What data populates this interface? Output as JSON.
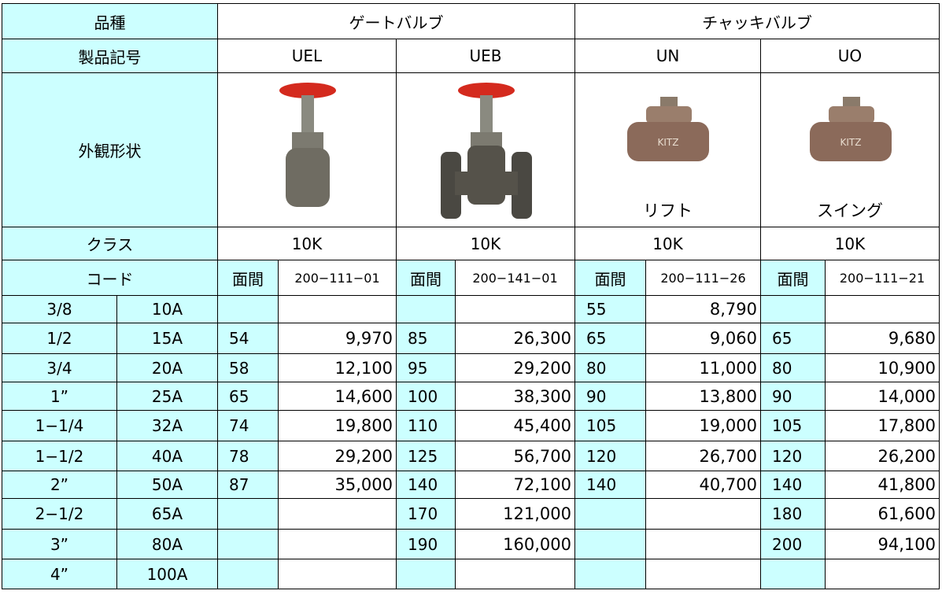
{
  "labels": {
    "kind": "品種",
    "product_code": "製品記号",
    "appearance": "外観形状",
    "class": "クラス",
    "code": "コード"
  },
  "groups": [
    {
      "name": "ゲートバルブ"
    },
    {
      "name": "チャッキバルブ"
    }
  ],
  "products": [
    {
      "symbol": "UEL",
      "class": "10K",
      "face_label": "面間",
      "code": "200−111−01"
    },
    {
      "symbol": "UEB",
      "class": "10K",
      "face_label": "面間",
      "code": "200−141−01"
    },
    {
      "symbol": "UN",
      "caption": "リフト",
      "class": "10K",
      "face_label": "面間",
      "code": "200−111−26"
    },
    {
      "symbol": "UO",
      "caption": "スイング",
      "class": "10K",
      "face_label": "面間",
      "code": "200−111−21"
    }
  ],
  "rows": [
    {
      "inch": "3/8",
      "mm": "10A",
      "cells": [
        null,
        null,
        {
          "face": 55,
          "price": "8,790"
        },
        null
      ]
    },
    {
      "inch": "1/2",
      "mm": "15A",
      "cells": [
        {
          "face": 54,
          "price": "9,970"
        },
        {
          "face": 85,
          "price": "26,300"
        },
        {
          "face": 65,
          "price": "9,060"
        },
        {
          "face": 65,
          "price": "9,680"
        }
      ]
    },
    {
      "inch": "3/4",
      "mm": "20A",
      "cells": [
        {
          "face": 58,
          "price": "12,100"
        },
        {
          "face": 95,
          "price": "29,200"
        },
        {
          "face": 80,
          "price": "11,000"
        },
        {
          "face": 80,
          "price": "10,900"
        }
      ]
    },
    {
      "inch": "1”",
      "mm": "25A",
      "cells": [
        {
          "face": 65,
          "price": "14,600"
        },
        {
          "face": 100,
          "price": "38,300"
        },
        {
          "face": 90,
          "price": "13,800"
        },
        {
          "face": 90,
          "price": "14,000"
        }
      ]
    },
    {
      "inch": "1−1/4",
      "mm": "32A",
      "cells": [
        {
          "face": 74,
          "price": "19,800"
        },
        {
          "face": 110,
          "price": "45,400"
        },
        {
          "face": 105,
          "price": "19,000"
        },
        {
          "face": 105,
          "price": "17,800"
        }
      ]
    },
    {
      "inch": "1−1/2",
      "mm": "40A",
      "cells": [
        {
          "face": 78,
          "price": "29,200"
        },
        {
          "face": 125,
          "price": "56,700"
        },
        {
          "face": 120,
          "price": "26,700"
        },
        {
          "face": 120,
          "price": "26,200"
        }
      ]
    },
    {
      "inch": "2”",
      "mm": "50A",
      "cells": [
        {
          "face": 87,
          "price": "35,000"
        },
        {
          "face": 140,
          "price": "72,100"
        },
        {
          "face": 140,
          "price": "40,700"
        },
        {
          "face": 140,
          "price": "41,800"
        }
      ]
    },
    {
      "inch": "2−1/2",
      "mm": "65A",
      "cells": [
        null,
        {
          "face": 170,
          "price": "121,000"
        },
        null,
        {
          "face": 180,
          "price": "61,600"
        }
      ]
    },
    {
      "inch": "3”",
      "mm": "80A",
      "cells": [
        null,
        {
          "face": 190,
          "price": "160,000"
        },
        null,
        {
          "face": 200,
          "price": "94,100"
        }
      ]
    },
    {
      "inch": "4”",
      "mm": "100A",
      "cells": [
        null,
        null,
        null,
        null
      ]
    }
  ]
}
